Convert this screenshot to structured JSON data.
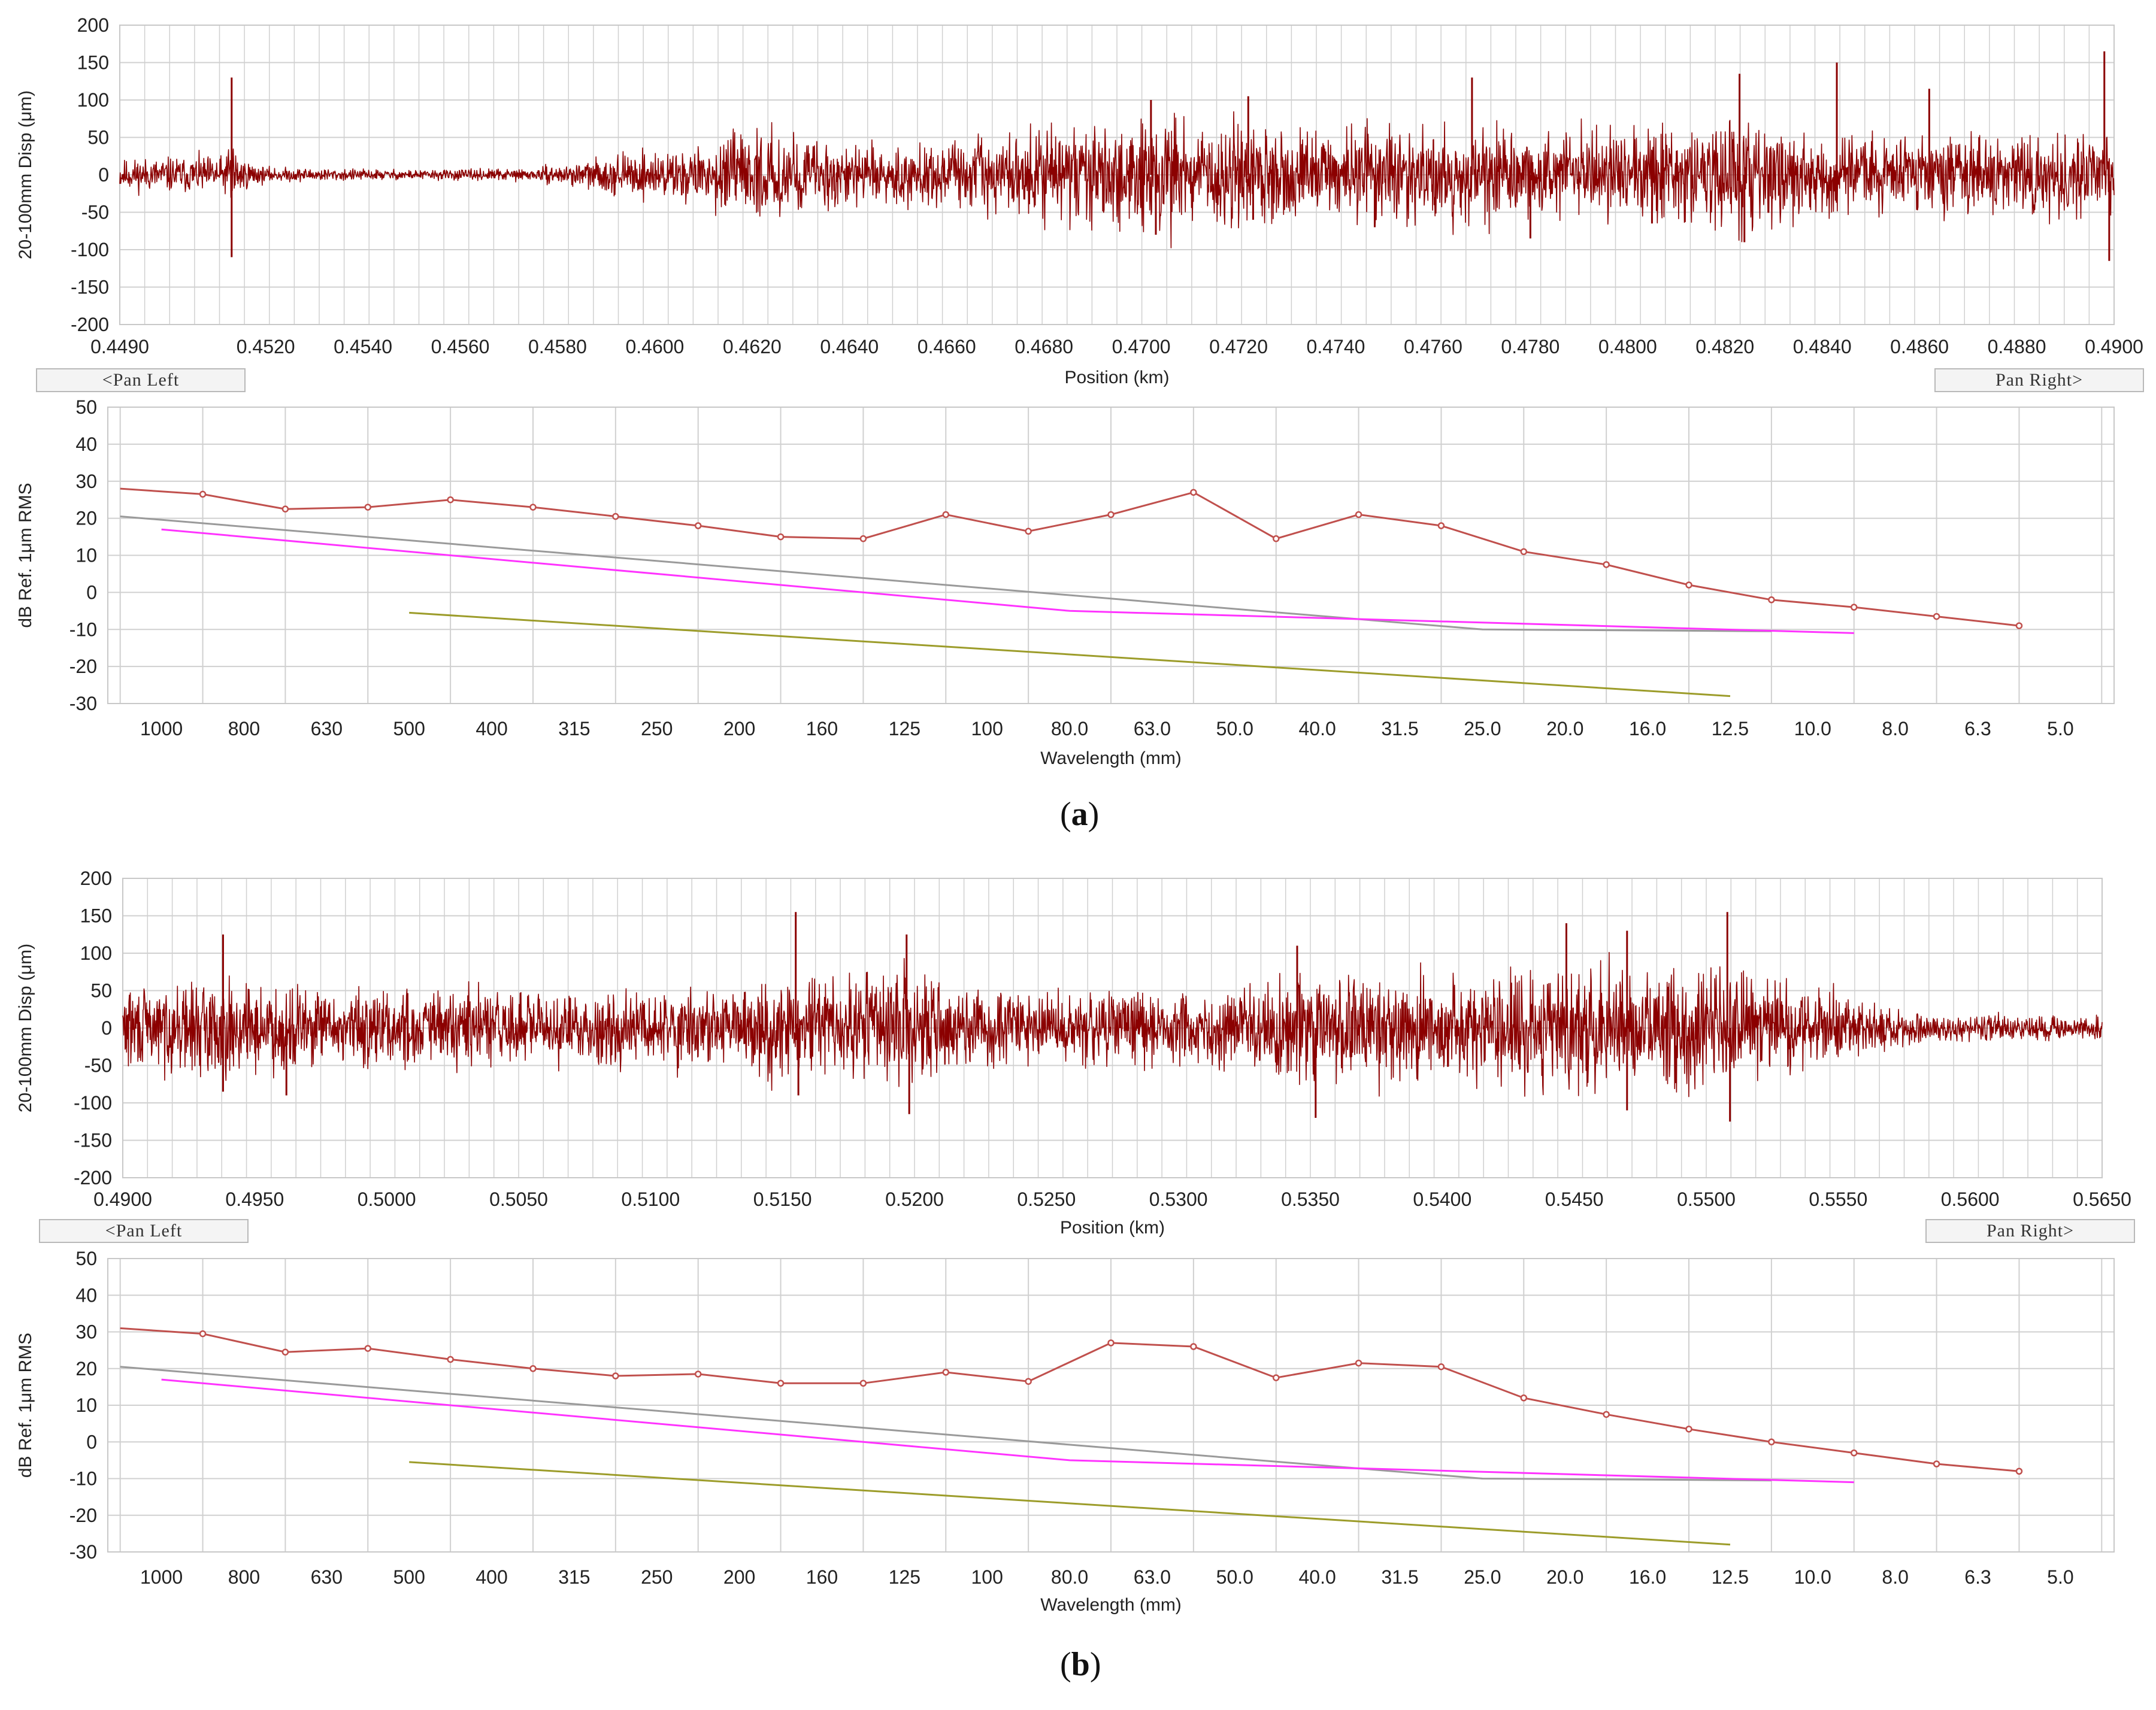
{
  "colors": {
    "disp": "#8b0000",
    "spectrum": "#c0504d",
    "gray_limit": "#9a9a9a",
    "magenta_limit": "#ff33ff",
    "olive_limit": "#9c9c2a",
    "grid": "#d0d0d0"
  },
  "panels": [
    {
      "label_prefix": "(",
      "label_letter": "a",
      "label_suffix": ")",
      "pan_left": "<Pan Left",
      "pan_right": "Pan Right>",
      "disp_chart": {
        "type": "line",
        "ylabel": "20-100mm Disp (μm)",
        "xlabel": "Position (km)",
        "xlim": [
          0.449,
          0.49
        ],
        "ylim": [
          -200,
          200
        ],
        "yticks": [
          "200",
          "150",
          "100",
          "50",
          "0",
          "-50",
          "-100",
          "-150",
          "-200"
        ],
        "xticks": [
          "0.4490",
          "0.4520",
          "0.4540",
          "0.4560",
          "0.4580",
          "0.4600",
          "0.4620",
          "0.4640",
          "0.4660",
          "0.4680",
          "0.4700",
          "0.4720",
          "0.4740",
          "0.4760",
          "0.4780",
          "0.4800",
          "0.4820",
          "0.4840",
          "0.4860",
          "0.4880",
          "0.4900"
        ],
        "xtick_values": [
          0.449,
          0.452,
          0.454,
          0.456,
          0.458,
          0.46,
          0.462,
          0.464,
          0.466,
          0.468,
          0.47,
          0.472,
          0.474,
          0.476,
          0.478,
          0.48,
          0.482,
          0.484,
          0.486,
          0.488,
          0.49
        ],
        "envelope_x": [
          0.449,
          0.4505,
          0.4512,
          0.4513,
          0.4514,
          0.452,
          0.455,
          0.4575,
          0.4585,
          0.4595,
          0.461,
          0.4615,
          0.4625,
          0.4635,
          0.465,
          0.467,
          0.469,
          0.4702,
          0.471,
          0.4725,
          0.474,
          0.4755,
          0.478,
          0.481,
          0.4823,
          0.4835,
          0.486,
          0.4885,
          0.4897,
          0.49
        ],
        "envelope_amp": [
          25,
          30,
          30,
          120,
          30,
          12,
          8,
          10,
          20,
          35,
          45,
          60,
          70,
          55,
          45,
          60,
          80,
          100,
          75,
          90,
          70,
          85,
          65,
          75,
          90,
          70,
          60,
          65,
          70,
          60
        ],
        "spikes": [
          {
            "x": 0.4513,
            "y": 130
          },
          {
            "x": 0.4513,
            "y": -110
          },
          {
            "x": 0.4702,
            "y": 100
          },
          {
            "x": 0.4703,
            "y": -80
          },
          {
            "x": 0.4722,
            "y": 105
          },
          {
            "x": 0.4723,
            "y": -60
          },
          {
            "x": 0.478,
            "y": -85
          },
          {
            "x": 0.4805,
            "y": -65
          },
          {
            "x": 0.4823,
            "y": 135
          },
          {
            "x": 0.4824,
            "y": -90
          },
          {
            "x": 0.4843,
            "y": 150
          },
          {
            "x": 0.4862,
            "y": 115
          },
          {
            "x": 0.4898,
            "y": 165
          },
          {
            "x": 0.4899,
            "y": -115
          },
          {
            "x": 0.4768,
            "y": 130
          },
          {
            "x": 0.4748,
            "y": -70
          }
        ],
        "seed": 11
      },
      "spectrum_chart": {
        "type": "line",
        "ylabel": "dB Ref. 1μm RMS",
        "xlabel": "Wavelength (mm)",
        "ylim": [
          -30,
          50
        ],
        "yticks": [
          "50",
          "40",
          "30",
          "20",
          "10",
          "0",
          "-10",
          "-20",
          "-30"
        ],
        "xticks": [
          "1000",
          "800",
          "630",
          "500",
          "400",
          "315",
          "250",
          "200",
          "160",
          "125",
          "100",
          "80.0",
          "63.0",
          "50.0",
          "40.0",
          "31.5",
          "25.0",
          "20.0",
          "16.0",
          "12.5",
          "10.0",
          "8.0",
          "6.3",
          "5.0"
        ],
        "series": [
          {
            "name": "spectrum",
            "start": -0.5,
            "values": [
              28,
              26.5,
              22.5,
              23,
              25,
              23,
              20.5,
              18,
              15,
              14.5,
              21,
              16.5,
              21,
              27,
              14.5,
              21,
              18,
              11,
              7.5,
              2,
              -2,
              -4,
              -6.5,
              -9
            ]
          },
          {
            "name": "gray_limit",
            "points": [
              [
                -0.5,
                20.5
              ],
              [
                16,
                -10
              ],
              [
                19.5,
                -10.5
              ]
            ]
          },
          {
            "name": "magenta_limit",
            "points": [
              [
                0,
                17
              ],
              [
                11,
                -5
              ],
              [
                20.5,
                -11
              ]
            ]
          },
          {
            "name": "olive_limit",
            "points": [
              [
                3,
                -5.5
              ],
              [
                19,
                -28
              ]
            ]
          }
        ]
      }
    },
    {
      "label_prefix": "(",
      "label_letter": "b",
      "label_suffix": ")",
      "pan_left": "<Pan Left",
      "pan_right": "Pan Right>",
      "disp_chart": {
        "type": "line",
        "ylabel": "20-100mm Disp (μm)",
        "xlabel": "Position (km)",
        "xlim": [
          0.49,
          0.565
        ],
        "ylim": [
          -200,
          200
        ],
        "yticks": [
          "200",
          "150",
          "100",
          "50",
          "0",
          "-50",
          "-100",
          "-150",
          "-200"
        ],
        "xticks": [
          "0.4900",
          "0.4950",
          "0.5000",
          "0.5050",
          "0.5100",
          "0.5150",
          "0.5200",
          "0.5250",
          "0.5300",
          "0.5350",
          "0.5400",
          "0.5450",
          "0.5500",
          "0.5550",
          "0.5600",
          "0.5650"
        ],
        "xtick_values": [
          0.49,
          0.495,
          0.5,
          0.505,
          0.51,
          0.515,
          0.52,
          0.525,
          0.53,
          0.535,
          0.54,
          0.545,
          0.55,
          0.555,
          0.56,
          0.565
        ],
        "envelope_x": [
          0.49,
          0.494,
          0.498,
          0.503,
          0.508,
          0.512,
          0.515,
          0.5195,
          0.522,
          0.527,
          0.532,
          0.535,
          0.54,
          0.5445,
          0.5475,
          0.551,
          0.555,
          0.557,
          0.5585,
          0.565
        ],
        "envelope_amp": [
          65,
          75,
          60,
          65,
          55,
          65,
          80,
          95,
          60,
          60,
          65,
          85,
          80,
          100,
          95,
          90,
          55,
          30,
          22,
          20
        ],
        "spikes": [
          {
            "x": 0.4938,
            "y": 125
          },
          {
            "x": 0.4938,
            "y": -85
          },
          {
            "x": 0.4962,
            "y": -90
          },
          {
            "x": 0.5155,
            "y": 155
          },
          {
            "x": 0.5156,
            "y": -90
          },
          {
            "x": 0.5197,
            "y": 125
          },
          {
            "x": 0.5198,
            "y": -115
          },
          {
            "x": 0.5352,
            "y": -120
          },
          {
            "x": 0.5345,
            "y": 110
          },
          {
            "x": 0.5447,
            "y": 140
          },
          {
            "x": 0.547,
            "y": -110
          },
          {
            "x": 0.5508,
            "y": 155
          },
          {
            "x": 0.5509,
            "y": -125
          },
          {
            "x": 0.547,
            "y": 130
          }
        ],
        "seed": 29
      },
      "spectrum_chart": {
        "type": "line",
        "ylabel": "dB Ref. 1μm RMS",
        "xlabel": "Wavelength (mm)",
        "ylim": [
          -30,
          50
        ],
        "yticks": [
          "50",
          "40",
          "30",
          "20",
          "10",
          "0",
          "-10",
          "-20",
          "-30"
        ],
        "xticks": [
          "1000",
          "800",
          "630",
          "500",
          "400",
          "315",
          "250",
          "200",
          "160",
          "125",
          "100",
          "80.0",
          "63.0",
          "50.0",
          "40.0",
          "31.5",
          "25.0",
          "20.0",
          "16.0",
          "12.5",
          "10.0",
          "8.0",
          "6.3",
          "5.0"
        ],
        "series": [
          {
            "name": "spectrum",
            "start": -0.5,
            "values": [
              31,
              29.5,
              24.5,
              25.5,
              22.5,
              20,
              18,
              18.5,
              16,
              16,
              19,
              16.5,
              27,
              26,
              17.5,
              21.5,
              20.5,
              12,
              7.5,
              3.5,
              0,
              -3,
              -6,
              -8
            ]
          },
          {
            "name": "gray_limit",
            "points": [
              [
                -0.5,
                20.5
              ],
              [
                16,
                -10
              ],
              [
                19.5,
                -10.5
              ]
            ]
          },
          {
            "name": "magenta_limit",
            "points": [
              [
                0,
                17
              ],
              [
                11,
                -5
              ],
              [
                20.5,
                -11
              ]
            ]
          },
          {
            "name": "olive_limit",
            "points": [
              [
                3,
                -5.5
              ],
              [
                19,
                -28
              ]
            ]
          }
        ]
      }
    }
  ]
}
